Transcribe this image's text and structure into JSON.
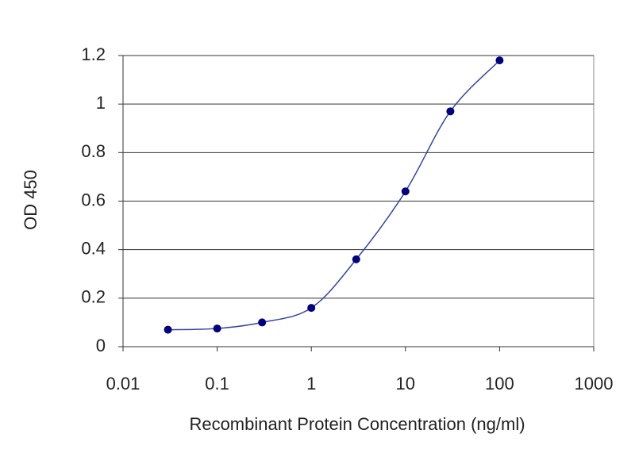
{
  "chart_data": {
    "type": "line",
    "x_label": "Recombinant Protein Concentration (ng/ml)",
    "y_label": "OD 450",
    "x": [
      0.03,
      0.1,
      0.3,
      1,
      3,
      10,
      30,
      100
    ],
    "series": [
      {
        "color": "#000080",
        "values": [
          0.07,
          0.075,
          0.1,
          0.16,
          0.36,
          0.64,
          0.97,
          1.18
        ]
      }
    ],
    "xlim": [
      0.01,
      1000
    ],
    "xticks": [
      0.01,
      0.1,
      1,
      10,
      100,
      1000
    ],
    "xscale": "log",
    "ylim": [
      0,
      1.2
    ],
    "yticks": [
      0,
      0.2,
      0.4,
      0.6,
      0.8,
      1,
      1.2
    ],
    "grid": true
  }
}
